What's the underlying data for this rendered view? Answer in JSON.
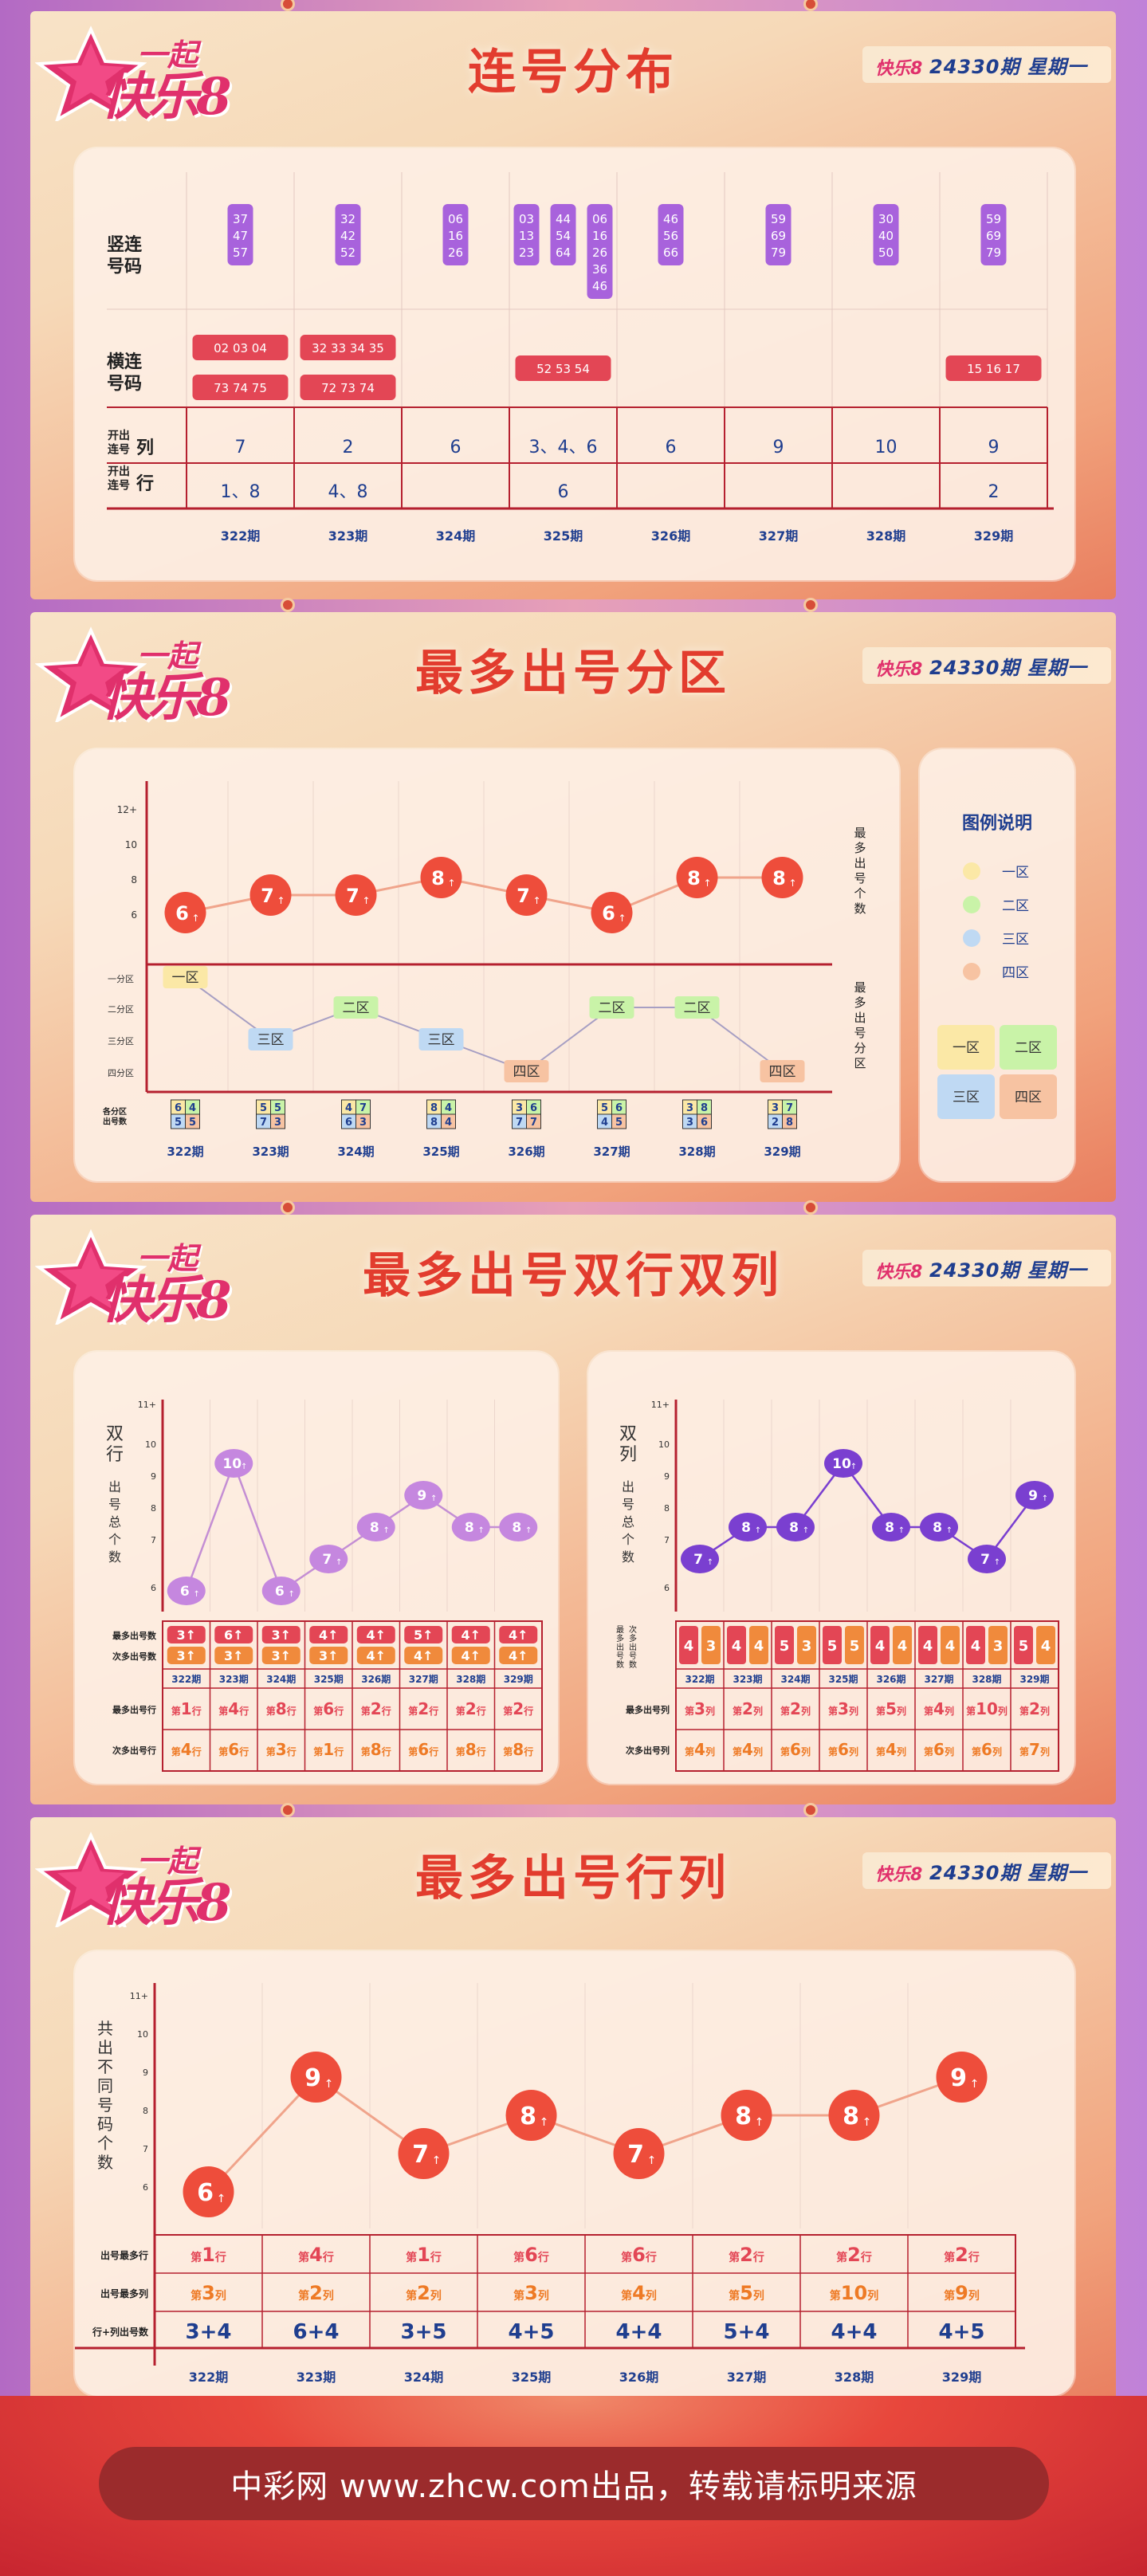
{
  "colors": {
    "accent_red": "#e23c2e",
    "navy": "#1f3e8f",
    "purple": "#9c4fd8"
  },
  "brand": {
    "logo_small": "一起",
    "logo_big": "快乐8",
    "issue_line": "24330期  星期一"
  },
  "sections": [
    {
      "title": "连号分布"
    },
    {
      "title": "最多出号分区"
    },
    {
      "title": "最多出号双行双列"
    },
    {
      "title": "最多出号行列"
    }
  ],
  "periods": [
    "322期",
    "323期",
    "324期",
    "325期",
    "326期",
    "327期",
    "328期",
    "329期"
  ],
  "s1": {
    "row_vertical": "竖连\n号码",
    "row_horizontal": "横连\n号码",
    "row_col_label": "开出\n连号",
    "row_col_suffix": "列",
    "row_row_label": "开出\n连号",
    "row_row_suffix": "行",
    "vertical": [
      [
        [
          "37",
          "47",
          "57"
        ]
      ],
      [
        [
          "32",
          "42",
          "52"
        ]
      ],
      [
        [
          "06",
          "16",
          "26"
        ]
      ],
      [
        [
          "03",
          "13",
          "23"
        ],
        [
          "44",
          "54",
          "64"
        ],
        [
          "06",
          "16",
          "26",
          "36",
          "46"
        ]
      ],
      [
        [
          "46",
          "56",
          "66"
        ]
      ],
      [
        [
          "59",
          "69",
          "79"
        ]
      ],
      [
        [
          "30",
          "40",
          "50"
        ]
      ],
      [
        [
          "59",
          "69",
          "79"
        ]
      ]
    ],
    "horizontal": [
      [
        "02 03 04",
        "73 74 75"
      ],
      [
        "32 33 34 35",
        "72 73 74"
      ],
      [],
      [
        "52 53 54"
      ],
      [],
      [],
      [],
      [
        "15 16 17"
      ]
    ],
    "col_values": [
      "7",
      "2",
      "6",
      "3、4、6",
      "6",
      "9",
      "10",
      "9"
    ],
    "row_values": [
      "1、8",
      "4、8",
      "",
      "6",
      "",
      "",
      "",
      "2"
    ]
  },
  "s2": {
    "y_ticks": [
      "12+",
      "10",
      "8",
      "6"
    ],
    "zone_ticks": [
      "一分区",
      "二分区",
      "三分区",
      "四分区"
    ],
    "right_label_top": "最多出号个数",
    "right_label_bottom": "最多出号分区",
    "bottom_label": "各分区\n出号数",
    "max_counts": [
      "6",
      "7",
      "7",
      "8",
      "7",
      "6",
      "8",
      "8"
    ],
    "arrow": "↑",
    "zones": [
      "一区",
      "三区",
      "二区",
      "三区",
      "四区",
      "二区",
      "二区",
      "四区"
    ],
    "zone_counts": [
      [
        "6",
        "4",
        "5",
        "5"
      ],
      [
        "5",
        "5",
        "7",
        "3"
      ],
      [
        "4",
        "7",
        "6",
        "3"
      ],
      [
        "8",
        "4",
        "8",
        "4"
      ],
      [
        "3",
        "6",
        "7",
        "7"
      ],
      [
        "5",
        "6",
        "4",
        "5"
      ],
      [
        "3",
        "8",
        "3",
        "6"
      ],
      [
        "3",
        "7",
        "2",
        "8"
      ]
    ],
    "legend_title": "图例说明",
    "legend_items": [
      "一区",
      "二区",
      "三区",
      "四区"
    ],
    "legend_grid": [
      "一区",
      "二区",
      "三区",
      "四区"
    ]
  },
  "s3": {
    "left": {
      "ylabel": "双行出号总个数",
      "y_ticks": [
        "11+",
        "10",
        "9",
        "8",
        "7",
        "6"
      ],
      "values": [
        "6",
        "10",
        "6",
        "7",
        "8",
        "9",
        "8",
        "8"
      ],
      "row1_label": "最多出号数",
      "row2_label": "次多出号数",
      "most": [
        [
          "3",
          "3"
        ],
        [
          "6",
          "4"
        ],
        [
          "3",
          "3"
        ],
        [
          "4",
          "3"
        ],
        [
          "4",
          "4"
        ],
        [
          "5",
          "4"
        ],
        [
          "4",
          "4"
        ],
        [
          "4",
          "4"
        ]
      ],
      "second": [
        [
          "3",
          "3"
        ],
        [
          "3",
          "3"
        ],
        [
          "3",
          "3"
        ],
        [
          "3",
          "3"
        ],
        [
          "4",
          "4"
        ],
        [
          "4",
          "4"
        ],
        [
          "4",
          "4"
        ],
        [
          "4",
          "4"
        ]
      ],
      "most_label": "最多出号行",
      "second_label": "次多出号行",
      "most_rows": [
        "1",
        "4",
        "8",
        "6",
        "2",
        "2",
        "2",
        "2"
      ],
      "second_rows": [
        "4",
        "6",
        "3",
        "1",
        "8",
        "6",
        "8",
        "8"
      ],
      "prefix": "第",
      "suffix": "行"
    },
    "right": {
      "ylabel": "双列出号总个数",
      "y_ticks": [
        "11+",
        "10",
        "9",
        "8",
        "7",
        "6"
      ],
      "values": [
        "7",
        "8",
        "8",
        "10",
        "8",
        "8",
        "7",
        "9"
      ],
      "row_label": "最多出号数\n次多出号数",
      "cells": [
        [
          "4",
          "3"
        ],
        [
          "4",
          "4"
        ],
        [
          "5",
          "3"
        ],
        [
          "5",
          "5"
        ],
        [
          "4",
          "4"
        ],
        [
          "4",
          "4"
        ],
        [
          "4",
          "3"
        ],
        [
          "5",
          "4"
        ]
      ],
      "most_label": "最多出号列",
      "second_label": "次多出号列",
      "most_cols": [
        "3",
        "2",
        "2",
        "3",
        "5",
        "4",
        "10",
        "2"
      ],
      "second_cols": [
        "4",
        "4",
        "6",
        "6",
        "4",
        "6",
        "6",
        "7"
      ],
      "prefix": "第",
      "suffix": "列"
    }
  },
  "s4": {
    "ylabel": "共出不同号码个数",
    "y_ticks": [
      "11+",
      "10",
      "9",
      "8",
      "7",
      "6"
    ],
    "values": [
      "6",
      "9",
      "7",
      "8",
      "7",
      "8",
      "8",
      "9"
    ],
    "row_most_label": "出号最多行",
    "row_col_label": "出号最多列",
    "row_sum_label": "行+列出号数",
    "most_rows": [
      "1",
      "4",
      "1",
      "6",
      "6",
      "2",
      "2",
      "2"
    ],
    "most_cols": [
      "3",
      "2",
      "2",
      "3",
      "4",
      "5",
      "10",
      "9"
    ],
    "sums": [
      "3+4",
      "6+4",
      "3+5",
      "4+5",
      "4+4",
      "5+4",
      "4+4",
      "4+5"
    ],
    "prefix": "第",
    "row_suffix": "行",
    "col_suffix": "列"
  },
  "footer": {
    "text": "中彩网 www.zhcw.com出品，转载请标明来源"
  }
}
